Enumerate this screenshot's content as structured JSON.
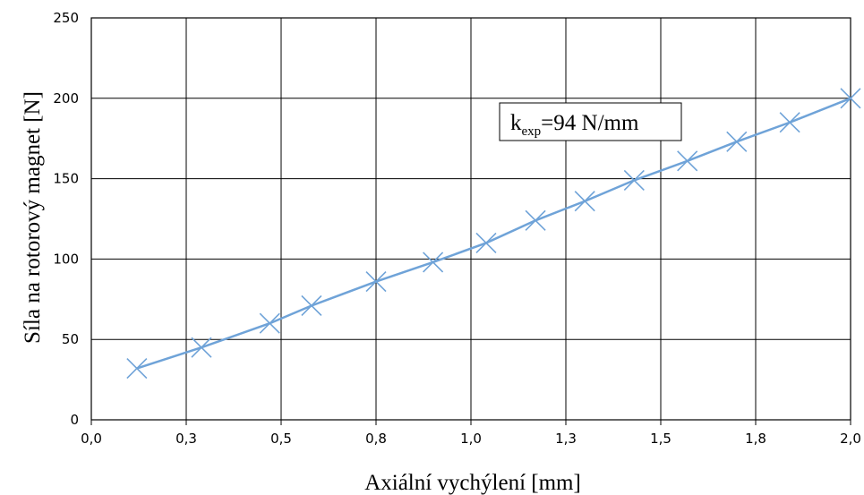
{
  "chart_data": {
    "type": "line",
    "title": "",
    "xlabel": "Axiální vychýlení [mm]",
    "ylabel": "Síla na rotorový magnet [N]",
    "xlim": [
      0,
      2.0
    ],
    "ylim": [
      0,
      250
    ],
    "x_ticks": [
      0,
      0.25,
      0.5,
      0.75,
      1.0,
      1.25,
      1.5,
      1.75,
      2.0
    ],
    "x_tick_labels": [
      "0,0",
      "0,3",
      "0,5",
      "0,8",
      "1,0",
      "1,3",
      "1,5",
      "1,8",
      "2,0"
    ],
    "y_ticks": [
      0,
      50,
      100,
      150,
      200,
      250
    ],
    "y_tick_labels": [
      "0",
      "50",
      "100",
      "150",
      "200",
      "250"
    ],
    "grid": true,
    "series": [
      {
        "color": "#6fa3d8",
        "marker": "x",
        "x": [
          0.12,
          0.29,
          0.47,
          0.58,
          0.75,
          0.9,
          1.04,
          1.17,
          1.3,
          1.43,
          1.57,
          1.7,
          1.84,
          2.0
        ],
        "y": [
          32,
          45,
          60,
          71,
          86,
          98,
          110,
          124,
          136,
          149,
          161,
          173,
          185,
          200
        ]
      }
    ],
    "annotation": {
      "text_main": "k",
      "text_sub": "exp",
      "text_rest": "=94 N/mm"
    }
  }
}
